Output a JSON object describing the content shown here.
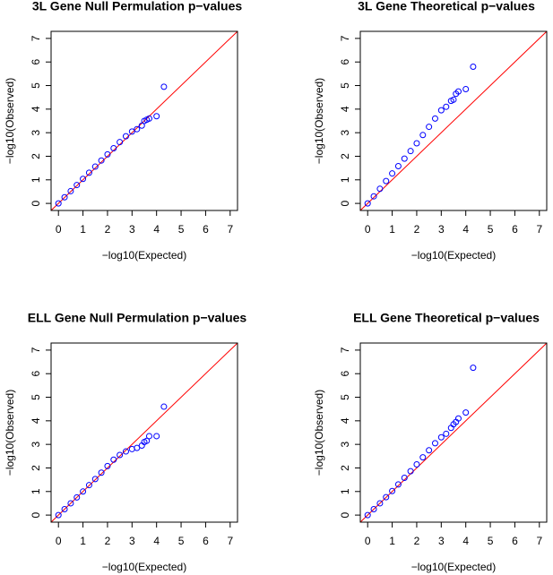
{
  "chart_data": [
    {
      "type": "scatter",
      "title": "3L Gene Null Permulation p−values",
      "xlabel": "−log10(Expected)",
      "ylabel": "−log10(Observed)",
      "xlim": [
        -0.3,
        7.3
      ],
      "ylim": [
        -0.3,
        7.3
      ],
      "xticks": [
        0,
        1,
        2,
        3,
        4,
        5,
        6,
        7
      ],
      "yticks": [
        0,
        1,
        2,
        3,
        4,
        5,
        6,
        7
      ],
      "color": "#0000ff",
      "reference_line_color": "#ff0000",
      "x": [
        0,
        0.25,
        0.5,
        0.75,
        1,
        1.25,
        1.5,
        1.75,
        2,
        2.25,
        2.5,
        2.75,
        3,
        3.2,
        3.4,
        3.5,
        3.6,
        3.7,
        4.0,
        4.3
      ],
      "y": [
        0,
        0.26,
        0.52,
        0.78,
        1.04,
        1.3,
        1.56,
        1.82,
        2.08,
        2.34,
        2.6,
        2.85,
        3.05,
        3.15,
        3.3,
        3.5,
        3.55,
        3.6,
        3.7,
        4.95
      ]
    },
    {
      "type": "scatter",
      "title": "3L Gene Theoretical p−values",
      "xlabel": "−log10(Expected)",
      "ylabel": "−log10(Observed)",
      "xlim": [
        -0.3,
        7.3
      ],
      "ylim": [
        -0.3,
        7.3
      ],
      "xticks": [
        0,
        1,
        2,
        3,
        4,
        5,
        6,
        7
      ],
      "yticks": [
        0,
        1,
        2,
        3,
        4,
        5,
        6,
        7
      ],
      "color": "#0000ff",
      "reference_line_color": "#ff0000",
      "x": [
        0,
        0.25,
        0.5,
        0.75,
        1,
        1.25,
        1.5,
        1.75,
        2,
        2.25,
        2.5,
        2.75,
        3,
        3.2,
        3.4,
        3.5,
        3.6,
        3.7,
        4.0,
        4.3
      ],
      "y": [
        0,
        0.3,
        0.62,
        0.95,
        1.27,
        1.58,
        1.9,
        2.22,
        2.55,
        2.9,
        3.25,
        3.6,
        3.95,
        4.1,
        4.35,
        4.4,
        4.65,
        4.75,
        4.85,
        5.8
      ]
    },
    {
      "type": "scatter",
      "title": "ELL Gene Null Permulation p−values",
      "xlabel": "−log10(Expected)",
      "ylabel": "−log10(Observed)",
      "xlim": [
        -0.3,
        7.3
      ],
      "ylim": [
        -0.3,
        7.3
      ],
      "xticks": [
        0,
        1,
        2,
        3,
        4,
        5,
        6,
        7
      ],
      "yticks": [
        0,
        1,
        2,
        3,
        4,
        5,
        6,
        7
      ],
      "color": "#0000ff",
      "reference_line_color": "#ff0000",
      "x": [
        0,
        0.25,
        0.5,
        0.75,
        1,
        1.25,
        1.5,
        1.75,
        2,
        2.25,
        2.5,
        2.75,
        3,
        3.2,
        3.4,
        3.5,
        3.6,
        3.7,
        4.0,
        4.3
      ],
      "y": [
        0,
        0.25,
        0.5,
        0.75,
        1.0,
        1.27,
        1.53,
        1.8,
        2.08,
        2.35,
        2.55,
        2.7,
        2.8,
        2.85,
        2.95,
        3.1,
        3.15,
        3.35,
        3.35,
        4.6
      ]
    },
    {
      "type": "scatter",
      "title": "ELL Gene Theoretical p−values",
      "xlabel": "−log10(Expected)",
      "ylabel": "−log10(Observed)",
      "xlim": [
        -0.3,
        7.3
      ],
      "ylim": [
        -0.3,
        7.3
      ],
      "xticks": [
        0,
        1,
        2,
        3,
        4,
        5,
        6,
        7
      ],
      "yticks": [
        0,
        1,
        2,
        3,
        4,
        5,
        6,
        7
      ],
      "color": "#0000ff",
      "reference_line_color": "#ff0000",
      "x": [
        0,
        0.25,
        0.5,
        0.75,
        1,
        1.25,
        1.5,
        1.75,
        2,
        2.25,
        2.5,
        2.75,
        3,
        3.2,
        3.4,
        3.5,
        3.6,
        3.7,
        4.0,
        4.3
      ],
      "y": [
        0,
        0.25,
        0.5,
        0.76,
        1.02,
        1.3,
        1.58,
        1.86,
        2.15,
        2.45,
        2.75,
        3.05,
        3.3,
        3.45,
        3.7,
        3.85,
        3.95,
        4.1,
        4.35,
        6.25
      ]
    }
  ]
}
